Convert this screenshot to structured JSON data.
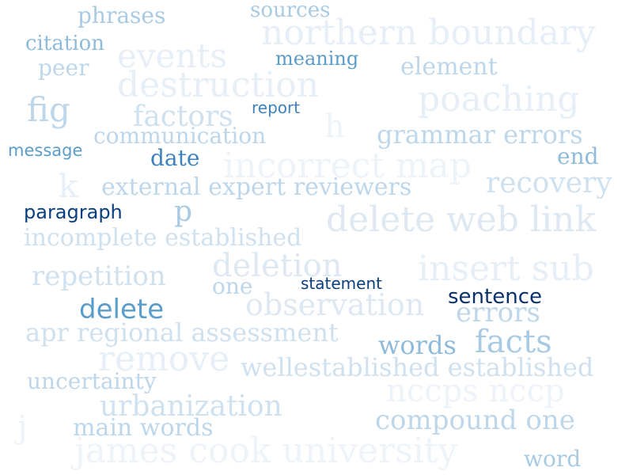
{
  "word_cloud": {
    "words": [
      "northern boundary",
      "events",
      "destruction",
      "poaching",
      "incorrect map",
      "delete web link",
      "insert sub",
      "remove",
      "observation",
      "nccps nccp",
      "james cook university",
      "deletion",
      "h",
      "k",
      "j",
      "phrases",
      "sources",
      "citation",
      "meaning",
      "peer",
      "element",
      "fig",
      "factors",
      "report",
      "communication",
      "grammar errors",
      "message",
      "date",
      "end",
      "external expert reviewers",
      "recovery",
      "paragraph",
      "p",
      "incomplete established",
      "repetition",
      "one",
      "statement",
      "sentence",
      "delete",
      "errors",
      "apr regional assessment",
      "words",
      "facts",
      "wellestablished established",
      "uncertainty",
      "urbanization",
      "compound one",
      "main words",
      "word"
    ]
  }
}
